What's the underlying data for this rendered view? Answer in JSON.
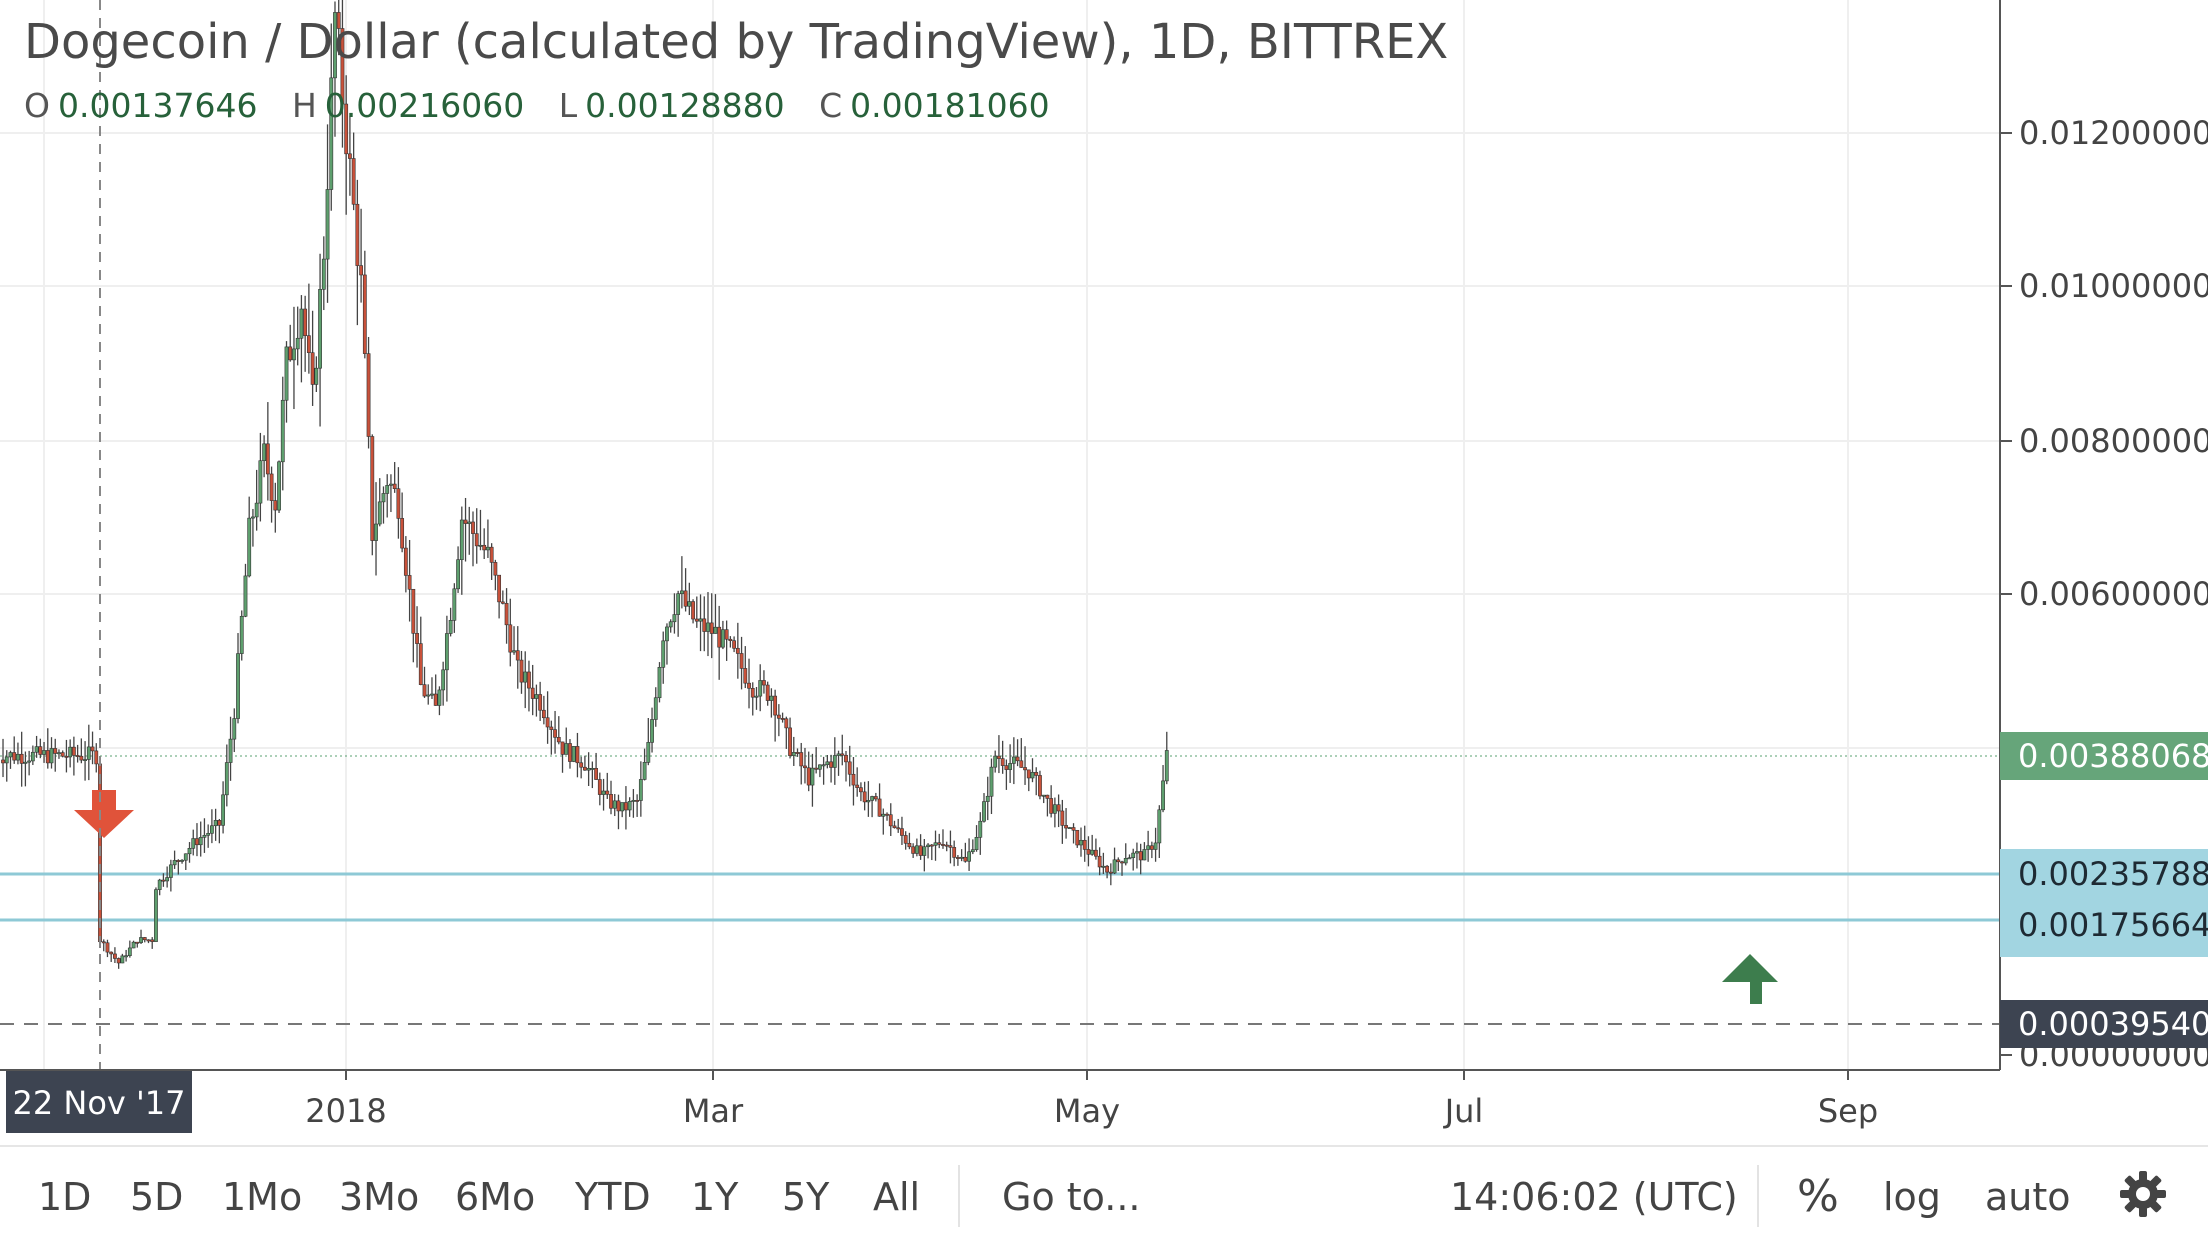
{
  "header": {
    "title": "Dogecoin / Dollar (calculated by TradingView), 1D, BITTREX",
    "ohlc": [
      {
        "key": "O",
        "value": "0.00137646"
      },
      {
        "key": "H",
        "value": "0.00216060"
      },
      {
        "key": "L",
        "value": "0.00128880"
      },
      {
        "key": "C",
        "value": "0.00181060"
      }
    ]
  },
  "crosshair_date": "22 Nov '17",
  "chart_data": {
    "type": "candlestick",
    "ylim": [
      0.0001,
      0.0135
    ],
    "y_ticks": [
      "0.01200000",
      "0.01000000",
      "0.00800000",
      "0.00600000",
      "0.00000000"
    ],
    "x_ticks": [
      "2018",
      "Mar",
      "May",
      "Jul",
      "Sep"
    ],
    "price_labels": [
      {
        "value": "0.00388068",
        "role": "last_price",
        "color": "#66a57a"
      },
      {
        "value": "0.00235788",
        "role": "horizontal_line",
        "color": "#a2d5e1"
      },
      {
        "value": "0.00175664",
        "role": "horizontal_line",
        "color": "#a2d5e1"
      },
      {
        "value": "0.00039540",
        "role": "dashed_line",
        "color": "#3d4451"
      }
    ],
    "horizontal_lines": [
      0.00235788,
      0.00175664
    ],
    "dashed_line": 0.0003954,
    "markers": [
      {
        "type": "arrow-down",
        "color": "#e0533a",
        "date": "22 Nov '17"
      },
      {
        "type": "arrow-up",
        "color": "#3d7d4d",
        "date": "Aug '18"
      }
    ],
    "series_path": [
      [
        0,
        0.0015
      ],
      [
        5,
        0.0012
      ],
      [
        10,
        0.0015
      ],
      [
        14,
        0.0015
      ],
      [
        15,
        0.0022
      ],
      [
        20,
        0.0025
      ],
      [
        26,
        0.0028
      ],
      [
        32,
        0.003
      ],
      [
        36,
        0.0045
      ],
      [
        40,
        0.0068
      ],
      [
        44,
        0.0078
      ],
      [
        47,
        0.0072
      ],
      [
        50,
        0.009
      ],
      [
        54,
        0.0098
      ],
      [
        57,
        0.0085
      ],
      [
        60,
        0.0105
      ],
      [
        63,
        0.0135
      ],
      [
        67,
        0.0115
      ],
      [
        70,
        0.01
      ],
      [
        73,
        0.0068
      ],
      [
        77,
        0.0075
      ],
      [
        80,
        0.0072
      ],
      [
        83,
        0.006
      ],
      [
        86,
        0.0048
      ],
      [
        90,
        0.0045
      ],
      [
        94,
        0.0058
      ],
      [
        97,
        0.007
      ],
      [
        100,
        0.0068
      ],
      [
        104,
        0.0065
      ],
      [
        108,
        0.0058
      ],
      [
        112,
        0.005
      ],
      [
        118,
        0.0046
      ],
      [
        124,
        0.004
      ],
      [
        130,
        0.0038
      ],
      [
        136,
        0.0033
      ],
      [
        140,
        0.0032
      ],
      [
        144,
        0.0033
      ],
      [
        147,
        0.004
      ],
      [
        151,
        0.0055
      ],
      [
        155,
        0.006
      ],
      [
        160,
        0.0056
      ],
      [
        165,
        0.0055
      ],
      [
        170,
        0.0052
      ],
      [
        175,
        0.0048
      ],
      [
        180,
        0.0047
      ],
      [
        185,
        0.004
      ],
      [
        190,
        0.0036
      ],
      [
        195,
        0.0038
      ],
      [
        199,
        0.0039
      ],
      [
        204,
        0.0034
      ],
      [
        209,
        0.0032
      ],
      [
        214,
        0.0029
      ],
      [
        220,
        0.0026
      ],
      [
        226,
        0.0028
      ],
      [
        232,
        0.0025
      ],
      [
        236,
        0.003
      ],
      [
        240,
        0.0039
      ],
      [
        244,
        0.0038
      ],
      [
        249,
        0.0037
      ],
      [
        254,
        0.0033
      ],
      [
        260,
        0.0029
      ],
      [
        266,
        0.0026
      ],
      [
        270,
        0.0024
      ],
      [
        275,
        0.0026
      ],
      [
        280,
        0.0026
      ],
      [
        283,
        0.0028
      ],
      [
        286,
        0.0039
      ]
    ]
  },
  "toolbar": {
    "ranges": [
      "1D",
      "5D",
      "1Mo",
      "3Mo",
      "6Mo",
      "YTD",
      "1Y",
      "5Y",
      "All"
    ],
    "goto": "Go to...",
    "clock": "14:06:02 (UTC)",
    "percent": "%",
    "log": "log",
    "auto": "auto"
  }
}
